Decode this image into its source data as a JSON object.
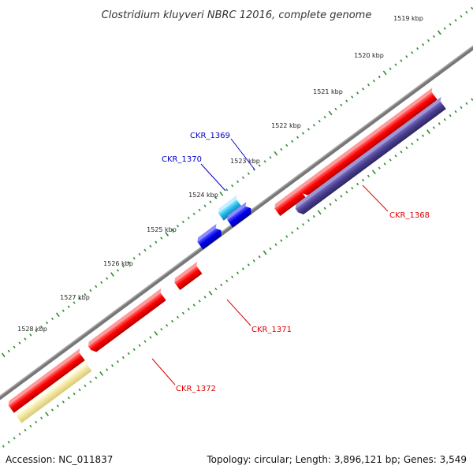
{
  "title": "Clostridium kluyveri NBRC 12016, complete genome",
  "accession": "Accession: NC_011837",
  "summary": "Topology: circular; Length: 3,896,121 bp; Genes: 3,549",
  "colors": {
    "backbone": "#777777",
    "tick": "#2e8b2e",
    "label_red": "#dd0000",
    "label_blue": "#0000cc",
    "forward_gene": "#ff0000",
    "reverse_gene": "#4a3f8f",
    "blue_gene": "#0000ee",
    "cyan_gene": "#22bbee",
    "pale_gene": "#f2e6a0"
  },
  "kbp_labels": [
    "1519 kbp",
    "1520 kbp",
    "1521 kbp",
    "1522 kbp",
    "1523 kbp",
    "1524 kbp",
    "1525 kbp",
    "1526 kbp",
    "1527 kbp",
    "1528 kbp"
  ],
  "gene_labels": [
    {
      "text": "CKR_1368",
      "color": "red"
    },
    {
      "text": "CKR_1369",
      "color": "blue"
    },
    {
      "text": "CKR_1370",
      "color": "blue"
    },
    {
      "text": "CKR_1371",
      "color": "red"
    },
    {
      "text": "CKR_1372",
      "color": "red"
    }
  ]
}
